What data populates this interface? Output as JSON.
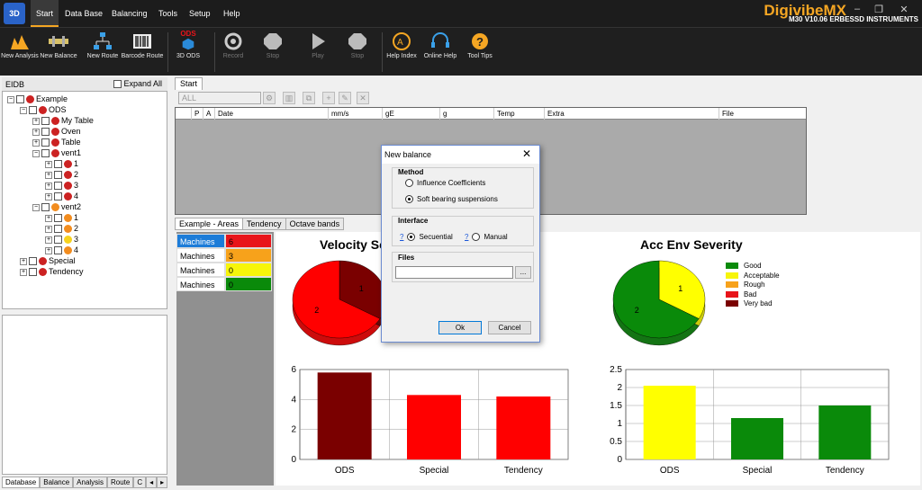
{
  "app": {
    "logo_text": "3D",
    "brand_main": "Digivibe",
    "brand_suffix": "MX",
    "brand_sub": "M30 V10.06",
    "brand_company": "ERBESSD INSTRUMENTS",
    "min": "–",
    "restore": "❐",
    "close": "✕"
  },
  "menu": [
    "Start",
    "Data Base",
    "Balancing",
    "Tools",
    "Setup",
    "Help"
  ],
  "ribbon": [
    {
      "label": "New Analysis"
    },
    {
      "label": "New Balance"
    },
    {
      "label": "New Route"
    },
    {
      "label": "Barcode Route"
    },
    {
      "label": "3D ODS",
      "badge": "ODS"
    },
    {
      "label": "Record"
    },
    {
      "label": "Stop"
    },
    {
      "label": "Play"
    },
    {
      "label": "Stop"
    },
    {
      "label": "Help Index"
    },
    {
      "label": "Online Help"
    },
    {
      "label": "Tool Tips"
    }
  ],
  "left": {
    "header": "EIDB",
    "expand_all": "Expand All"
  },
  "tree": [
    {
      "label": "Example",
      "lvl": 0,
      "pm": "−",
      "c": ""
    },
    {
      "label": "ODS",
      "lvl": 1,
      "pm": "−",
      "c": ""
    },
    {
      "label": "My Table",
      "lvl": 2,
      "pm": "+",
      "c": ""
    },
    {
      "label": "Oven",
      "lvl": 2,
      "pm": "+",
      "c": ""
    },
    {
      "label": "Table",
      "lvl": 2,
      "pm": "+",
      "c": ""
    },
    {
      "label": "vent1",
      "lvl": 2,
      "pm": "−",
      "c": ""
    },
    {
      "label": "1",
      "lvl": 3,
      "pm": "+",
      "c": ""
    },
    {
      "label": "2",
      "lvl": 3,
      "pm": "+",
      "c": ""
    },
    {
      "label": "3",
      "lvl": 3,
      "pm": "+",
      "c": ""
    },
    {
      "label": "4",
      "lvl": 3,
      "pm": "+",
      "c": ""
    },
    {
      "label": "vent2",
      "lvl": 2,
      "pm": "−",
      "c": "o"
    },
    {
      "label": "1",
      "lvl": 3,
      "pm": "+",
      "c": "o"
    },
    {
      "label": "2",
      "lvl": 3,
      "pm": "+",
      "c": "o"
    },
    {
      "label": "3",
      "lvl": 3,
      "pm": "+",
      "c": "y"
    },
    {
      "label": "4",
      "lvl": 3,
      "pm": "+",
      "c": "o"
    },
    {
      "label": "Special",
      "lvl": 1,
      "pm": "+",
      "c": ""
    },
    {
      "label": "Tendency",
      "lvl": 1,
      "pm": "+",
      "c": ""
    }
  ],
  "bottom_tabs": [
    "Database",
    "Balance",
    "Analysis",
    "Route",
    "C"
  ],
  "workspace": {
    "tab": "Start",
    "filter": "ALL",
    "columns": [
      "P",
      "A",
      "Date",
      "mm/s",
      "gE",
      "g",
      "Temp",
      "Extra",
      "File"
    ]
  },
  "graph_tabs": [
    "Example - Areas",
    "Tendency",
    "Octave bands"
  ],
  "areas": [
    {
      "label": "Machines",
      "value": "6",
      "color": "#e8141a"
    },
    {
      "label": "Machines",
      "value": "3",
      "color": "#f7a21b"
    },
    {
      "label": "Machines",
      "value": "0",
      "color": "#f7f50a"
    },
    {
      "label": "Machines",
      "value": "0",
      "color": "#0a8a0a"
    }
  ],
  "legend": [
    {
      "label": "Good",
      "color": "#0a8a0a"
    },
    {
      "label": "Acceptable",
      "color": "#f7f50a"
    },
    {
      "label": "Rough",
      "color": "#f7a21b"
    },
    {
      "label": "Bad",
      "color": "#e8141a"
    },
    {
      "label": "Very bad",
      "color": "#7a0000"
    }
  ],
  "colors": {
    "very_bad": "#7a0000",
    "bad": "#ff0000",
    "good": "#0a8a0a",
    "acceptable": "#ffff00"
  },
  "chart_data": [
    {
      "type": "pie",
      "title": "Velocity Severity",
      "values": [
        1,
        2
      ],
      "labels": [
        "1",
        "2"
      ],
      "colors": [
        "#7a0000",
        "#ff0000"
      ]
    },
    {
      "type": "pie",
      "title": "Acc Env Severity",
      "values": [
        1,
        2
      ],
      "labels": [
        "1",
        "2"
      ],
      "colors": [
        "#ffff00",
        "#0a8a0a"
      ]
    },
    {
      "type": "bar",
      "categories": [
        "ODS",
        "Special",
        "Tendency"
      ],
      "values": [
        5.8,
        4.3,
        4.2
      ],
      "ylim": [
        0,
        6
      ],
      "yticks": [
        "0",
        "2",
        "4",
        "6"
      ],
      "colors": [
        "#7a0000",
        "#ff0000",
        "#ff0000"
      ]
    },
    {
      "type": "bar",
      "categories": [
        "ODS",
        "Special",
        "Tendency"
      ],
      "values": [
        2.05,
        1.15,
        1.5
      ],
      "ylim": [
        0,
        2.5
      ],
      "yticks": [
        "0",
        "0.5",
        "1",
        "1.5",
        "2",
        "2.5"
      ],
      "colors": [
        "#ffff00",
        "#0a8a0a",
        "#0a8a0a"
      ]
    }
  ],
  "dialog": {
    "title": "New balance",
    "method_label": "Method",
    "method_options": [
      "Influence Coefficients",
      "Soft bearing suspensions"
    ],
    "interface_label": "Interface",
    "help_mark": "?",
    "interface_options": [
      "Secuential",
      "Manual"
    ],
    "files_label": "Files",
    "browse": "...",
    "ok": "Ok",
    "cancel": "Cancel"
  }
}
